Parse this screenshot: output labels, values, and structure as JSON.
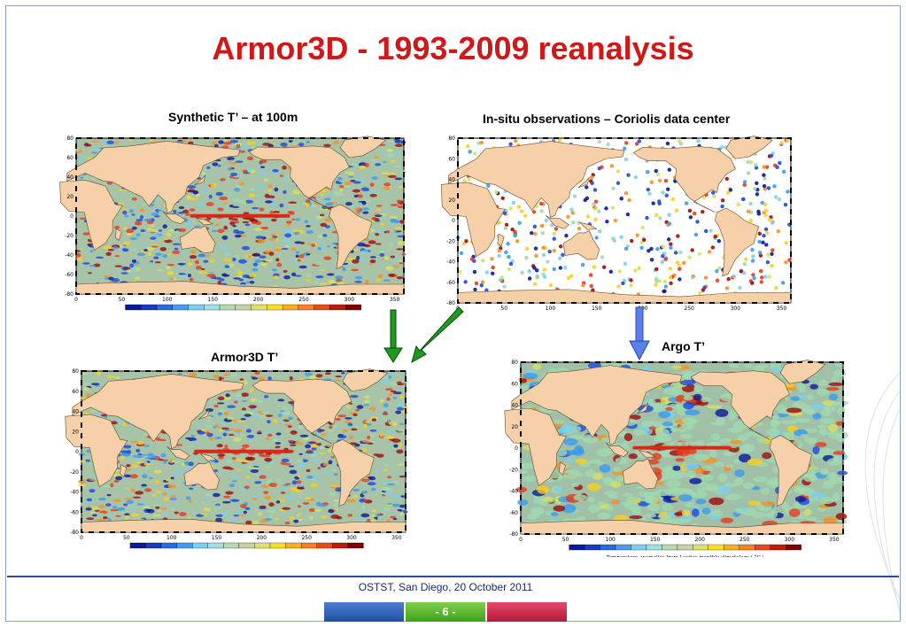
{
  "slide": {
    "title": "Armor3D  -  1993-2009 reanalysis",
    "footer": "OSTST, San Diego, 20 October 2011",
    "page_number": "- 6 -",
    "colors": {
      "title": "#d01818",
      "footer_text": "#1a2a70",
      "arrow_green": "#1e9a1e",
      "arrow_blue": "#5a7fe8"
    }
  },
  "panels": [
    {
      "id": "synthetic",
      "caption": "Synthetic T’ – at 100m",
      "map": "gridded-anomaly"
    },
    {
      "id": "insitu",
      "caption": "In-situ observations – Coriolis data center",
      "map": "scattered-observations"
    },
    {
      "id": "armor",
      "caption": "Armor3D T’",
      "map": "gridded-anomaly"
    },
    {
      "id": "argo",
      "caption": "Argo T’",
      "map": "smooth-anomaly",
      "colorbar_label": "Temperature anomalies from Levitus monthly climatology ( °C )"
    }
  ],
  "axes": {
    "y_ticks": [
      "80",
      "60",
      "40",
      "20",
      "0",
      "-20",
      "-40",
      "-60",
      "-80"
    ],
    "x_ticks": [
      "0",
      "50",
      "100",
      "150",
      "200",
      "250",
      "300",
      "350"
    ]
  }
}
